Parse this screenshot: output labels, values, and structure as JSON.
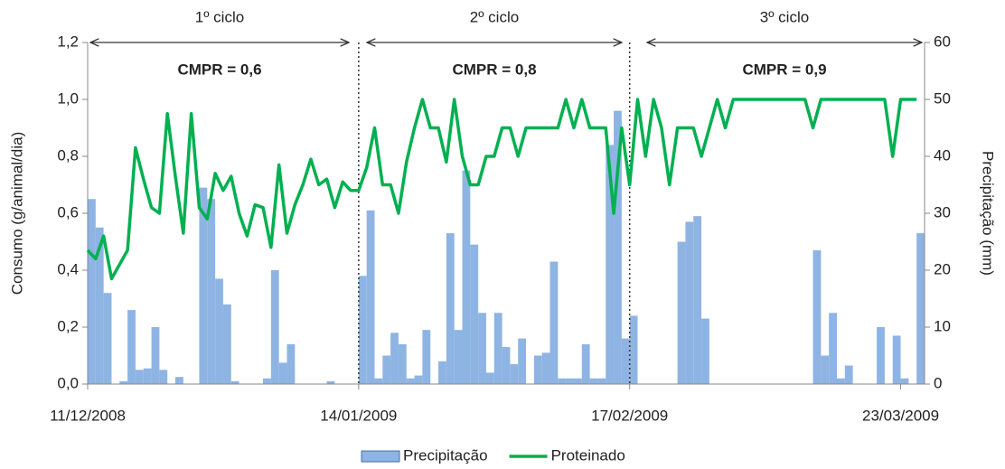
{
  "chart_data": {
    "type": "bar-line",
    "annotations": [
      {
        "label": "1º ciclo",
        "note": "CMPR = 0,6"
      },
      {
        "label": "2º ciclo",
        "note": "CMPR = 0,8"
      },
      {
        "label": "3º ciclo",
        "note": "CMPR = 0,9"
      }
    ],
    "y_label": "Consumo (g/animal/dia)",
    "y2_label": "Precipitação (mm)",
    "categories": [
      "11/12/2008",
      null,
      null,
      null,
      null,
      null,
      null,
      null,
      null,
      null,
      null,
      null,
      null,
      null,
      null,
      null,
      null,
      null,
      null,
      null,
      null,
      null,
      null,
      null,
      null,
      null,
      null,
      null,
      null,
      null,
      null,
      null,
      null,
      null,
      "14/01/2009",
      null,
      null,
      null,
      null,
      null,
      null,
      null,
      null,
      null,
      null,
      null,
      null,
      null,
      null,
      null,
      null,
      null,
      null,
      null,
      null,
      null,
      null,
      null,
      null,
      null,
      null,
      null,
      null,
      null,
      null,
      null,
      null,
      null,
      "17/02/2009",
      null,
      null,
      null,
      null,
      null,
      null,
      null,
      null,
      null,
      null,
      null,
      null,
      null,
      null,
      null,
      null,
      null,
      null,
      null,
      null,
      null,
      null,
      null,
      null,
      null,
      null,
      null,
      null,
      null,
      null,
      null,
      null,
      null,
      "23/03/2009",
      null,
      null
    ],
    "series": [
      {
        "name": "Precipitação",
        "type": "bar",
        "axis": "y2",
        "color": "#8eb4e3",
        "values": [
          32.5,
          27.5,
          16,
          0,
          0.5,
          13,
          2.5,
          2.75,
          10,
          2.5,
          0,
          1.25,
          0,
          0,
          34.5,
          32.5,
          18.5,
          14,
          0.5,
          0,
          0,
          0,
          1,
          20,
          3.75,
          7,
          0,
          0,
          0,
          0,
          0.5,
          0,
          0,
          0,
          19,
          30.5,
          1,
          5,
          9,
          7,
          1,
          1.5,
          9.5,
          0,
          4,
          26.5,
          9.5,
          37.5,
          24.5,
          12.5,
          2,
          12.5,
          6.5,
          3.5,
          8,
          0,
          5,
          5.5,
          21.5,
          1,
          1,
          1,
          7,
          1,
          1,
          42,
          48,
          8,
          12,
          0,
          0,
          0,
          0,
          0,
          25,
          28.5,
          29.5,
          11.5,
          0,
          0,
          0,
          0,
          0,
          0,
          0,
          0,
          0,
          0,
          0,
          0,
          0,
          23.5,
          5,
          12.5,
          1,
          3.25,
          0,
          0,
          0,
          10,
          0,
          8.5,
          1,
          0,
          26.5
        ]
      },
      {
        "name": "Proteinado",
        "type": "line",
        "axis": "y",
        "color": "#00b050",
        "values": [
          0.47,
          0.44,
          0.52,
          0.37,
          0.42,
          0.47,
          0.83,
          0.72,
          0.62,
          0.6,
          0.95,
          0.73,
          0.53,
          0.95,
          0.62,
          0.58,
          0.74,
          0.68,
          0.73,
          0.6,
          0.52,
          0.63,
          0.62,
          0.48,
          0.77,
          0.53,
          0.63,
          0.7,
          0.79,
          0.7,
          0.72,
          0.62,
          0.71,
          0.68,
          0.68,
          0.76,
          0.9,
          0.7,
          0.7,
          0.6,
          0.78,
          0.9,
          1.0,
          0.9,
          0.9,
          0.78,
          1.0,
          0.8,
          0.7,
          0.7,
          0.8,
          0.8,
          0.9,
          0.9,
          0.8,
          0.9,
          0.9,
          0.9,
          0.9,
          0.9,
          1.0,
          0.9,
          1.0,
          0.9,
          0.9,
          0.9,
          0.6,
          0.9,
          0.7,
          1.0,
          0.8,
          1.0,
          0.9,
          0.7,
          0.9,
          0.9,
          0.9,
          0.8,
          0.9,
          1.0,
          0.9,
          1.0,
          1.0,
          1.0,
          1.0,
          1.0,
          1.0,
          1.0,
          1.0,
          1.0,
          1.0,
          0.9,
          1.0,
          1.0,
          1.0,
          1.0,
          1.0,
          1.0,
          1.0,
          1.0,
          1.0,
          0.8,
          1.0,
          1.0,
          1.0
        ]
      }
    ],
    "ylim": [
      0,
      1.2
    ],
    "yticks": [
      {
        "value": 0,
        "label": "0,0"
      },
      {
        "value": 0.2,
        "label": "0,2"
      },
      {
        "value": 0.4,
        "label": "0,4"
      },
      {
        "value": 0.6,
        "label": "0,6"
      },
      {
        "value": 0.8,
        "label": "0,8"
      },
      {
        "value": 1.0,
        "label": "1,0"
      },
      {
        "value": 1.2,
        "label": "1,2"
      }
    ],
    "y2lim": [
      0,
      60
    ],
    "y2ticks": [
      0,
      10,
      20,
      30,
      40,
      50,
      60
    ],
    "legend": "bottom"
  }
}
